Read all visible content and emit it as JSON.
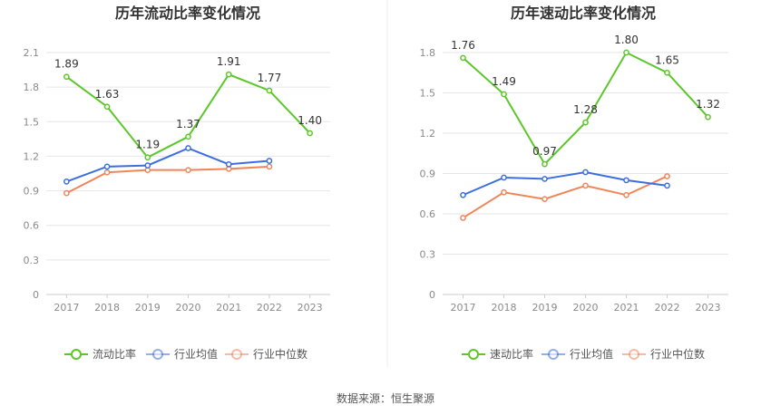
{
  "colors": {
    "current": "#5cc72a",
    "avg": "#3b6fe0",
    "median": "#f0855a",
    "grid": "#e6e6e6",
    "axis": "#cccccc"
  },
  "chart_data": [
    {
      "type": "line",
      "title": "历年流动比率变化情况",
      "categories": [
        "2017",
        "2018",
        "2019",
        "2020",
        "2021",
        "2022",
        "2023"
      ],
      "yticks": [
        "0",
        "0.3",
        "0.6",
        "0.9",
        "1.2",
        "1.5",
        "1.8",
        "2.1"
      ],
      "ylim": [
        0,
        2.1
      ],
      "grid": true,
      "legend_position": "bottom",
      "series": [
        {
          "name": "流动比率",
          "values": [
            1.89,
            1.63,
            1.19,
            1.37,
            1.91,
            1.77,
            1.4
          ],
          "labels": [
            "1.89",
            "1.63",
            "1.19",
            "1.37",
            "1.91",
            "1.77",
            "1.40"
          ]
        },
        {
          "name": "行业均值",
          "values": [
            0.98,
            1.11,
            1.12,
            1.27,
            1.13,
            1.16,
            null
          ]
        },
        {
          "name": "行业中位数",
          "values": [
            0.88,
            1.06,
            1.08,
            1.08,
            1.09,
            1.11,
            null
          ]
        }
      ]
    },
    {
      "type": "line",
      "title": "历年速动比率变化情况",
      "categories": [
        "2017",
        "2018",
        "2019",
        "2020",
        "2021",
        "2022",
        "2023"
      ],
      "yticks": [
        "0",
        "0.3",
        "0.6",
        "0.9",
        "1.2",
        "1.5",
        "1.8"
      ],
      "ylim": [
        0,
        1.8
      ],
      "grid": true,
      "legend_position": "bottom",
      "series": [
        {
          "name": "速动比率",
          "values": [
            1.76,
            1.49,
            0.97,
            1.28,
            1.8,
            1.65,
            1.32
          ],
          "labels": [
            "1.76",
            "1.49",
            "0.97",
            "1.28",
            "1.80",
            "1.65",
            "1.32"
          ]
        },
        {
          "name": "行业均值",
          "values": [
            0.74,
            0.87,
            0.86,
            0.91,
            0.85,
            0.81,
            null
          ]
        },
        {
          "name": "行业中位数",
          "values": [
            0.57,
            0.76,
            0.71,
            0.81,
            0.74,
            0.88,
            null
          ]
        }
      ]
    }
  ],
  "footer": {
    "source": "数据来源：恒生聚源"
  }
}
